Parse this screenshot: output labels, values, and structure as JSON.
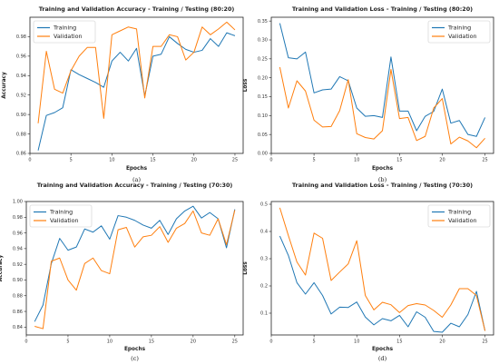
{
  "colors": {
    "training": "#1f77b4",
    "validation": "#ff7f0e"
  },
  "chart_data": [
    {
      "type": "line",
      "title": "Training and Validation Accuracy - Training / Testing (80:20)",
      "xlabel": "Epochs",
      "ylabel": "Accuracy",
      "caption": "(a)",
      "xlim": [
        0,
        26
      ],
      "ylim": [
        0.86,
        1.0
      ],
      "xticks": [
        0,
        5,
        10,
        15,
        20,
        25
      ],
      "yticks": [
        0.86,
        0.88,
        0.9,
        0.92,
        0.94,
        0.96,
        0.98
      ],
      "ytick_labels": [
        "0.86",
        "0.88",
        "0.90",
        "0.92",
        "0.94",
        "0.96",
        "0.98"
      ],
      "legend": "top-left",
      "grid": false,
      "x": [
        1,
        2,
        3,
        4,
        5,
        6,
        7,
        8,
        9,
        10,
        11,
        12,
        13,
        14,
        15,
        16,
        17,
        18,
        19,
        20,
        21,
        22,
        23,
        24,
        25
      ],
      "series": [
        {
          "name": "Training",
          "color": "#1f77b4",
          "values": [
            0.863,
            0.899,
            0.902,
            0.907,
            0.946,
            0.941,
            0.937,
            0.933,
            0.928,
            0.955,
            0.964,
            0.955,
            0.968,
            0.919,
            0.96,
            0.962,
            0.98,
            0.973,
            0.967,
            0.964,
            0.966,
            0.978,
            0.97,
            0.984,
            0.981
          ]
        },
        {
          "name": "Validation",
          "color": "#ff7f0e",
          "values": [
            0.891,
            0.965,
            0.926,
            0.922,
            0.945,
            0.96,
            0.969,
            0.969,
            0.896,
            0.982,
            0.986,
            0.99,
            0.988,
            0.917,
            0.97,
            0.97,
            0.982,
            0.98,
            0.956,
            0.964,
            0.99,
            0.982,
            0.988,
            0.995,
            0.987
          ]
        }
      ]
    },
    {
      "type": "line",
      "title": "Training and Validation Loss - Training / Testing (80:20)",
      "xlabel": "Epochs",
      "ylabel": "Loss",
      "caption": "(b)",
      "xlim": [
        0,
        26
      ],
      "ylim": [
        0,
        0.36
      ],
      "xticks": [
        0,
        5,
        10,
        15,
        20,
        25
      ],
      "yticks": [
        0,
        0.05,
        0.1,
        0.15,
        0.2,
        0.25,
        0.3,
        0.35
      ],
      "ytick_labels": [
        "0.00",
        "0.05",
        "0.10",
        "0.15",
        "0.20",
        "0.25",
        "0.30",
        "0.35"
      ],
      "legend": "top-right",
      "grid": false,
      "x": [
        1,
        2,
        3,
        4,
        5,
        6,
        7,
        8,
        9,
        10,
        11,
        12,
        13,
        14,
        15,
        16,
        17,
        18,
        19,
        20,
        21,
        22,
        23,
        24,
        25
      ],
      "series": [
        {
          "name": "Training",
          "color": "#1f77b4",
          "values": [
            0.344,
            0.253,
            0.25,
            0.268,
            0.16,
            0.168,
            0.17,
            0.203,
            0.192,
            0.12,
            0.098,
            0.1,
            0.095,
            0.255,
            0.112,
            0.112,
            0.06,
            0.098,
            0.111,
            0.17,
            0.08,
            0.087,
            0.05,
            0.045,
            0.095
          ]
        },
        {
          "name": "Validation",
          "color": "#ff7f0e",
          "values": [
            0.228,
            0.12,
            0.192,
            0.165,
            0.088,
            0.07,
            0.071,
            0.113,
            0.195,
            0.052,
            0.042,
            0.038,
            0.06,
            0.222,
            0.092,
            0.095,
            0.034,
            0.045,
            0.12,
            0.145,
            0.025,
            0.043,
            0.033,
            0.015,
            0.04
          ]
        }
      ]
    },
    {
      "type": "line",
      "title": "Training and Validation Accuracy - Training / Testing (70:30)",
      "xlabel": "Epochs",
      "ylabel": "Accuracy",
      "caption": "(c)",
      "xlim": [
        0,
        26
      ],
      "ylim": [
        0.83,
        1.0
      ],
      "xticks": [
        0,
        5,
        10,
        15,
        20,
        25
      ],
      "yticks": [
        0.84,
        0.86,
        0.88,
        0.9,
        0.92,
        0.94,
        0.96,
        0.98,
        1.0
      ],
      "ytick_labels": [
        "0.84",
        "0.86",
        "0.88",
        "0.90",
        "0.92",
        "0.94",
        "0.96",
        "0.98",
        "1.00"
      ],
      "legend": "top-left",
      "grid": false,
      "x": [
        1,
        2,
        3,
        4,
        5,
        6,
        7,
        8,
        9,
        10,
        11,
        12,
        13,
        14,
        15,
        16,
        17,
        18,
        19,
        20,
        21,
        22,
        23,
        24,
        25
      ],
      "series": [
        {
          "name": "Training",
          "color": "#1f77b4",
          "values": [
            0.847,
            0.868,
            0.921,
            0.953,
            0.938,
            0.942,
            0.965,
            0.961,
            0.969,
            0.952,
            0.982,
            0.98,
            0.976,
            0.97,
            0.966,
            0.976,
            0.958,
            0.978,
            0.988,
            0.994,
            0.979,
            0.986,
            0.978,
            0.941,
            0.99
          ]
        },
        {
          "name": "Validation",
          "color": "#ff7f0e",
          "values": [
            0.841,
            0.838,
            0.924,
            0.928,
            0.9,
            0.887,
            0.921,
            0.928,
            0.912,
            0.908,
            0.964,
            0.967,
            0.942,
            0.955,
            0.957,
            0.968,
            0.948,
            0.966,
            0.972,
            0.988,
            0.96,
            0.957,
            0.978,
            0.945,
            0.989
          ]
        }
      ]
    },
    {
      "type": "line",
      "title": "Training and Validation Loss - Training / Testing (70:30)",
      "xlabel": "Epochs",
      "ylabel": "Loss",
      "caption": "(d)",
      "xlim": [
        0,
        26
      ],
      "ylim": [
        0.02,
        0.51
      ],
      "xticks": [
        0,
        5,
        10,
        15,
        20,
        25
      ],
      "yticks": [
        0.1,
        0.2,
        0.3,
        0.4,
        0.5
      ],
      "ytick_labels": [
        "0.1",
        "0.2",
        "0.3",
        "0.4",
        "0.5"
      ],
      "legend": "top-right",
      "grid": false,
      "x": [
        1,
        2,
        3,
        4,
        5,
        6,
        7,
        8,
        9,
        10,
        11,
        12,
        13,
        14,
        15,
        16,
        17,
        18,
        19,
        20,
        21,
        22,
        23,
        24,
        25
      ],
      "series": [
        {
          "name": "Training",
          "color": "#1f77b4",
          "values": [
            0.383,
            0.312,
            0.212,
            0.17,
            0.212,
            0.165,
            0.097,
            0.122,
            0.121,
            0.141,
            0.086,
            0.057,
            0.08,
            0.072,
            0.092,
            0.05,
            0.105,
            0.085,
            0.033,
            0.03,
            0.063,
            0.05,
            0.095,
            0.18,
            0.035
          ]
        },
        {
          "name": "Validation",
          "color": "#ff7f0e",
          "values": [
            0.487,
            0.385,
            0.288,
            0.24,
            0.394,
            0.375,
            0.22,
            0.251,
            0.281,
            0.366,
            0.165,
            0.112,
            0.14,
            0.131,
            0.102,
            0.128,
            0.135,
            0.13,
            0.11,
            0.085,
            0.13,
            0.19,
            0.19,
            0.165,
            0.035
          ]
        }
      ]
    }
  ]
}
